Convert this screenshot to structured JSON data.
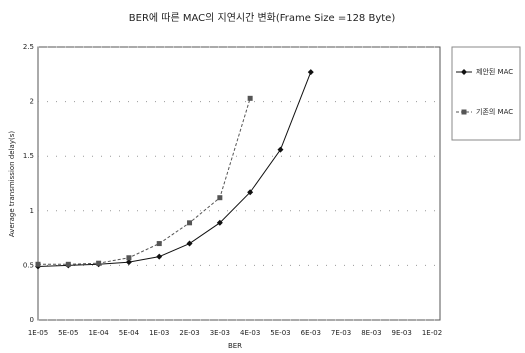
{
  "chart_data": {
    "type": "line",
    "title": "BER에 따른 MAC의 지연시간 변화(Frame Size =128 Byte)",
    "x_label": "BER",
    "y_label": "Average transmission delay(s)",
    "categories": [
      "1E-05",
      "5E-05",
      "1E-04",
      "5E-04",
      "1E-03",
      "2E-03",
      "3E-03",
      "4E-03",
      "5E-03",
      "6E-03",
      "7E-03",
      "8E-03",
      "9E-03",
      "1E-02"
    ],
    "series": [
      {
        "name": "제안된 MAC",
        "color": "#111111",
        "dash": false,
        "marker": "diamond",
        "values": [
          0.49,
          0.5,
          0.51,
          0.53,
          0.58,
          0.7,
          0.89,
          1.17,
          1.56,
          2.27,
          null,
          null,
          null,
          null
        ]
      },
      {
        "name": "기존의 MAC",
        "color": "#555555",
        "dash": true,
        "marker": "square",
        "values": [
          0.51,
          0.51,
          0.52,
          0.57,
          0.7,
          0.89,
          1.12,
          2.03,
          null,
          null,
          null,
          null,
          null,
          null
        ]
      }
    ],
    "ylim": [
      0,
      2.5
    ],
    "yticks": [
      0,
      0.5,
      1,
      1.5,
      2,
      2.5
    ],
    "grid": true,
    "legend": "right"
  }
}
